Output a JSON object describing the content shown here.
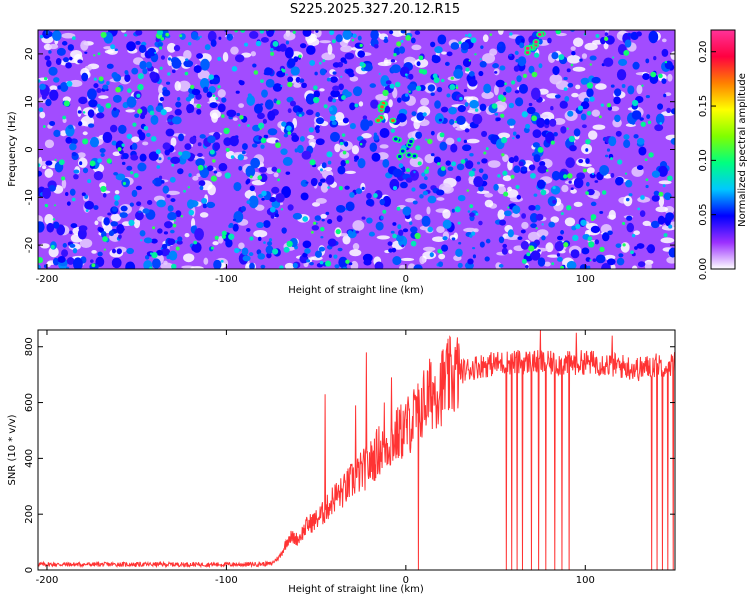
{
  "figure": {
    "title": "S225.2025.327.20.12.R15"
  },
  "chart_data": [
    {
      "type": "heatmap",
      "xlabel": "Height of straight line (km)",
      "ylabel": "Frequency (Hz)",
      "xlim": [
        -205,
        150
      ],
      "ylim": [
        -25,
        25
      ],
      "x_ticks": [
        -200,
        -100,
        0,
        100
      ],
      "y_ticks": [
        -20,
        -10,
        0,
        10,
        20
      ],
      "colorbar": {
        "label": "Normalized spectral amplitude",
        "range": [
          0,
          0.22
        ],
        "ticks": [
          "0.00",
          "0.05",
          "0.10",
          "0.15",
          "0.20"
        ],
        "colors": [
          "#ffffff",
          "#9b30ff",
          "#0000ff",
          "#00c8ff",
          "#00ff80",
          "#80ff00",
          "#ffff00",
          "#ff8000",
          "#ff0040",
          "#ff3399"
        ]
      },
      "features": [
        {
          "x": -10,
          "y": 8,
          "level": 0.18
        },
        {
          "x": 72,
          "y": 22,
          "level": 0.21
        },
        {
          "x": 0,
          "y": 0,
          "level": 0.05
        }
      ]
    },
    {
      "type": "line",
      "xlabel": "Height of straight line (km)",
      "ylabel": "SNR (10 * v/v)",
      "xlim": [
        -205,
        150
      ],
      "ylim": [
        0,
        860
      ],
      "x_ticks": [
        -200,
        -100,
        0,
        100
      ],
      "y_ticks": [
        0,
        200,
        400,
        600,
        800
      ],
      "color": "#ff3333",
      "series": [
        {
          "x": [
            -205,
            -180,
            -150,
            -120,
            -90,
            -75,
            -70,
            -65,
            -60,
            -55,
            -50,
            -45,
            -40,
            -35,
            -30,
            -25,
            -20,
            -15,
            -10,
            -5,
            0,
            5,
            10,
            15,
            20,
            25,
            30,
            40,
            50,
            60,
            70,
            80,
            90,
            100,
            110,
            120,
            130,
            140,
            150
          ],
          "y": [
            20,
            20,
            20,
            20,
            20,
            22,
            50,
            120,
            110,
            160,
            180,
            210,
            260,
            280,
            320,
            350,
            380,
            430,
            450,
            480,
            510,
            550,
            600,
            640,
            660,
            690,
            710,
            730,
            740,
            745,
            745,
            740,
            740,
            745,
            740,
            730,
            720,
            735,
            740
          ]
        }
      ],
      "spikes_down": [
        7,
        56,
        59,
        62,
        65,
        70,
        74,
        78,
        83,
        87,
        91,
        137,
        140,
        143,
        146,
        149
      ],
      "spikes_up": [
        -45,
        -28,
        -22,
        -12,
        -8,
        75,
        95,
        115
      ]
    }
  ]
}
